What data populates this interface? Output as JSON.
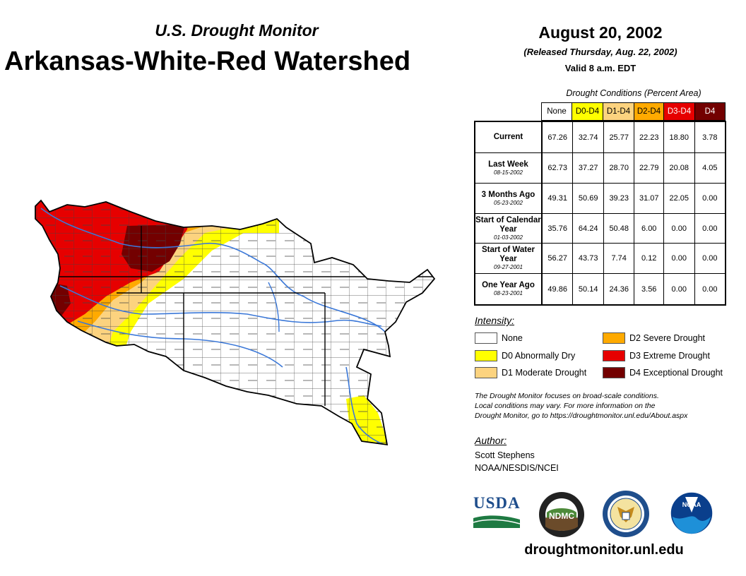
{
  "header": {
    "subtitle": "U.S. Drought Monitor",
    "title": "Arkansas-White-Red Watershed",
    "date": "August 20, 2002",
    "released": "(Released Thursday, Aug. 22, 2002)",
    "valid": "Valid 8 a.m. EDT"
  },
  "table": {
    "caption": "Drought Conditions (Percent Area)",
    "columns": [
      {
        "label": "None",
        "bg": "#ffffff",
        "fg": "#000000"
      },
      {
        "label": "D0-D4",
        "bg": "#ffff00",
        "fg": "#000000"
      },
      {
        "label": "D1-D4",
        "bg": "#fcd37f",
        "fg": "#000000"
      },
      {
        "label": "D2-D4",
        "bg": "#ffaa00",
        "fg": "#000000"
      },
      {
        "label": "D3-D4",
        "bg": "#e60000",
        "fg": "#ffffff"
      },
      {
        "label": "D4",
        "bg": "#730000",
        "fg": "#ffffff"
      }
    ],
    "rows": [
      {
        "label": "Current",
        "sub": "",
        "values": [
          "67.26",
          "32.74",
          "25.77",
          "22.23",
          "18.80",
          "3.78"
        ]
      },
      {
        "label": "Last Week",
        "sub": "08-15-2002",
        "values": [
          "62.73",
          "37.27",
          "28.70",
          "22.79",
          "20.08",
          "4.05"
        ]
      },
      {
        "label": "3 Months Ago",
        "sub": "05-23-2002",
        "values": [
          "49.31",
          "50.69",
          "39.23",
          "31.07",
          "22.05",
          "0.00"
        ]
      },
      {
        "label": "Start of Calendar Year",
        "sub": "01-03-2002",
        "values": [
          "35.76",
          "64.24",
          "50.48",
          "6.00",
          "0.00",
          "0.00"
        ]
      },
      {
        "label": "Start of Water Year",
        "sub": "09-27-2001",
        "values": [
          "56.27",
          "43.73",
          "7.74",
          "0.12",
          "0.00",
          "0.00"
        ]
      },
      {
        "label": "One Year Ago",
        "sub": "08-23-2001",
        "values": [
          "49.86",
          "50.14",
          "24.36",
          "3.56",
          "0.00",
          "0.00"
        ]
      }
    ]
  },
  "legend": {
    "title": "Intensity:",
    "items": [
      {
        "label": "None",
        "color": "#ffffff"
      },
      {
        "label": "D0 Abnormally Dry",
        "color": "#ffff00"
      },
      {
        "label": "D1 Moderate Drought",
        "color": "#fcd37f"
      },
      {
        "label": "D2 Severe Drought",
        "color": "#ffaa00"
      },
      {
        "label": "D3 Extreme Drought",
        "color": "#e60000"
      },
      {
        "label": "D4 Exceptional Drought",
        "color": "#730000"
      }
    ]
  },
  "note": {
    "line1": "The Drought Monitor focuses on broad-scale conditions.",
    "line2": "Local conditions may vary. For more information on the",
    "line3": "Drought Monitor, go to https://droughtmonitor.unl.edu/About.aspx"
  },
  "author": {
    "title": "Author:",
    "name": "Scott Stephens",
    "org": "NOAA/NESDIS/NCEI"
  },
  "logos": {
    "usda": "USDA",
    "ndmc": "NDMC",
    "noaa": "NOAA"
  },
  "website": "droughtmonitor.unl.edu"
}
